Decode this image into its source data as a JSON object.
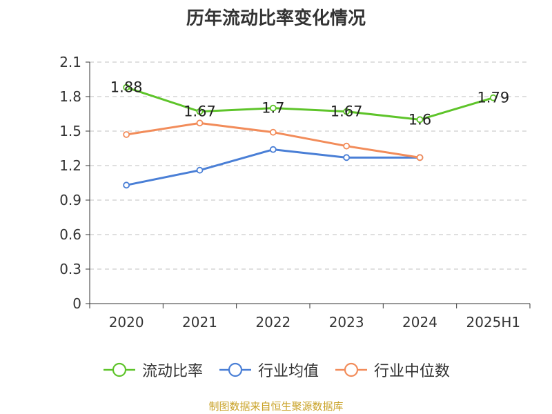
{
  "chart_data": {
    "type": "line",
    "title": "历年流动比率变化情况",
    "categories": [
      "2020",
      "2021",
      "2022",
      "2023",
      "2024",
      "2025H1"
    ],
    "ylim": [
      0,
      2.1
    ],
    "yticks": [
      "0",
      "0.3",
      "0.6",
      "0.9",
      "1.2",
      "1.5",
      "1.8",
      "2.1"
    ],
    "grid": true,
    "legend_position": "bottom",
    "series": [
      {
        "name": "流动比率",
        "color": "#5ec42a",
        "values": [
          1.88,
          1.67,
          1.7,
          1.67,
          1.6,
          1.79
        ],
        "labels": [
          "1.88",
          "1.67",
          "1.7",
          "1.67",
          "1.6",
          "1.79"
        ]
      },
      {
        "name": "行业均值",
        "color": "#4a7fd6",
        "values": [
          1.03,
          1.16,
          1.34,
          1.27,
          1.27,
          null
        ]
      },
      {
        "name": "行业中位数",
        "color": "#f28c5a",
        "values": [
          1.47,
          1.57,
          1.49,
          1.37,
          1.27,
          null
        ]
      }
    ]
  },
  "source_text": "制图数据来自恒生聚源数据库"
}
